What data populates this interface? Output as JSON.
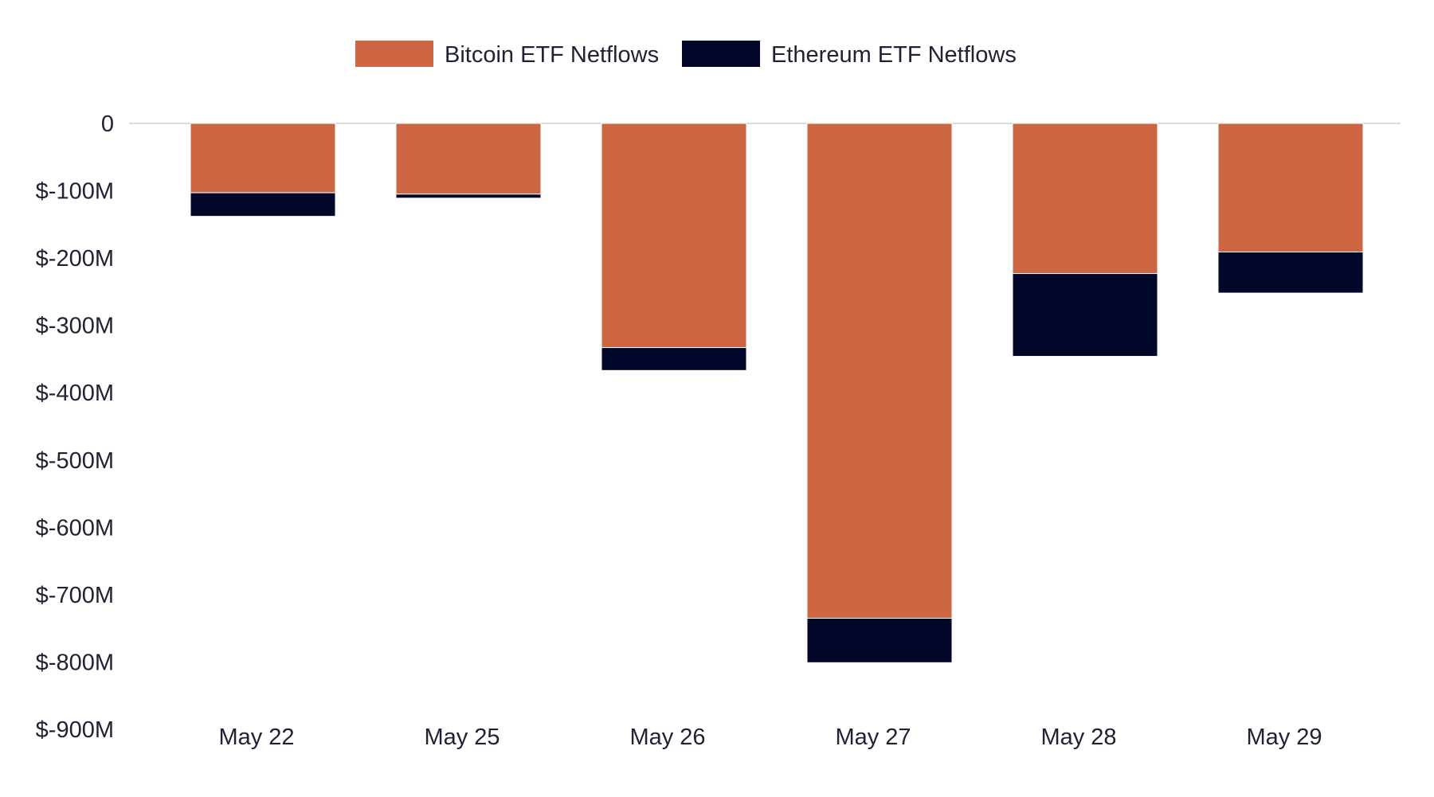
{
  "chart_data": {
    "type": "bar",
    "stacked": true,
    "title": "",
    "xlabel": "",
    "ylabel": "",
    "categories": [
      "May 22",
      "May 25",
      "May 26",
      "May 27",
      "May 28",
      "May 29"
    ],
    "series": [
      {
        "name": "Bitcoin ETF Netflows",
        "color": "#cd6743",
        "values": [
          -103,
          -105,
          -333,
          -735,
          -223,
          -191
        ]
      },
      {
        "name": "Ethereum ETF Netflows",
        "color": "#02072a",
        "values": [
          -35,
          -6,
          -34,
          -66,
          -123,
          -61
        ]
      }
    ],
    "ylim": [
      -900,
      0
    ],
    "yticks": [
      0,
      -100,
      -200,
      -300,
      -400,
      -500,
      -600,
      -700,
      -800,
      -900
    ],
    "ytick_labels": [
      "0",
      "$-100M",
      "$-200M",
      "$-300M",
      "$-400M",
      "$-500M",
      "$-600M",
      "$-700M",
      "$-800M",
      "$-900M"
    ],
    "grid": false,
    "legend_position": "top-center"
  }
}
